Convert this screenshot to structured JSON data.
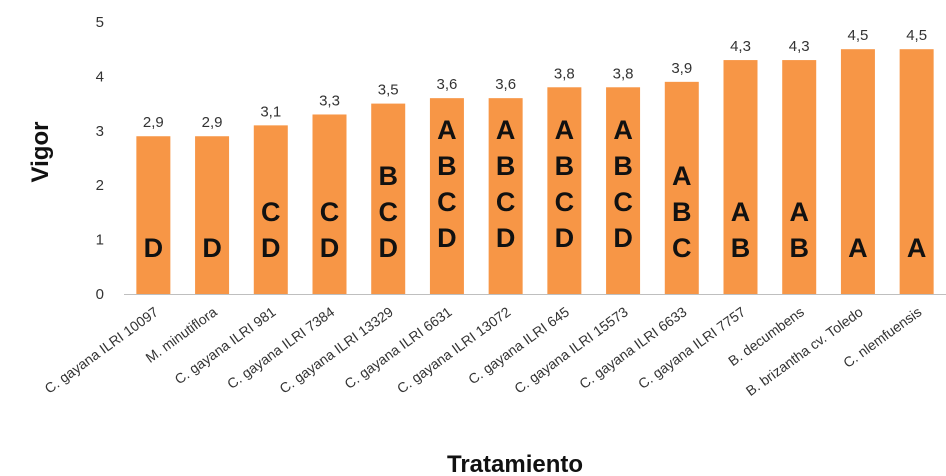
{
  "chart_data": {
    "type": "bar",
    "categories": [
      "C. gayana ILRI 10097",
      "M. minutiflora",
      "C. gayana ILRI 981",
      "C. gayana ILRI 7384",
      "C. gayana ILRI 13329",
      "C. gayana ILRI 6631",
      "C. gayana ILRI 13072",
      "C. gayana ILRI 645",
      "C. gayana ILRI 15573",
      "C. gayana ILRI 6633",
      "C. gayana ILRI 7757",
      "B. decumbens",
      "B. brizantha cv. Toledo",
      "C. nlemfuensis"
    ],
    "values": [
      2.9,
      2.9,
      3.1,
      3.3,
      3.5,
      3.6,
      3.6,
      3.8,
      3.8,
      3.9,
      4.3,
      4.3,
      4.5,
      4.5
    ],
    "value_labels": [
      "2,9",
      "2,9",
      "3,1",
      "3,3",
      "3,5",
      "3,6",
      "3,6",
      "3,8",
      "3,8",
      "3,9",
      "4,3",
      "4,3",
      "4,5",
      "4,5"
    ],
    "groups": [
      [
        "D"
      ],
      [
        "D"
      ],
      [
        "C",
        "D"
      ],
      [
        "C",
        "D"
      ],
      [
        "B",
        "C",
        "D"
      ],
      [
        "A",
        "B",
        "C",
        "D"
      ],
      [
        "A",
        "B",
        "C",
        "D"
      ],
      [
        "A",
        "B",
        "C",
        "D"
      ],
      [
        "A",
        "B",
        "C",
        "D"
      ],
      [
        "A",
        "B",
        "C"
      ],
      [
        "A",
        "B"
      ],
      [
        "A",
        "B"
      ],
      [
        "A"
      ],
      [
        "A"
      ]
    ],
    "xlabel": "Tratamiento",
    "ylabel": "Vigor",
    "ylim": [
      0,
      5
    ],
    "yticks": [
      "0",
      "1",
      "2",
      "3",
      "4",
      "5"
    ],
    "bar_color": "#F79646",
    "grid": false,
    "legend": "none"
  }
}
